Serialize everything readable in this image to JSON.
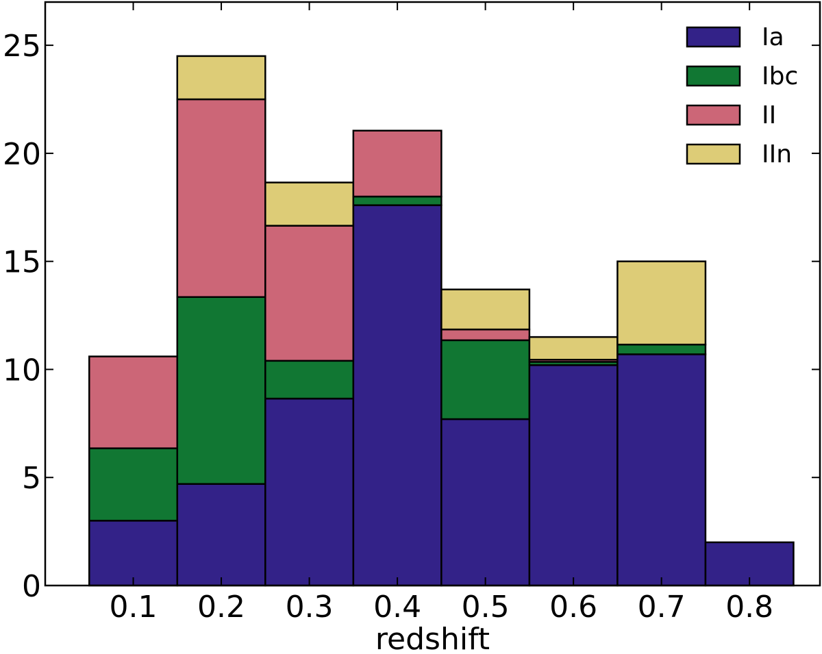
{
  "chart_data": {
    "type": "bar",
    "stacked": true,
    "title": "",
    "xlabel": "redshift",
    "ylabel": "",
    "categories": [
      "0.1",
      "0.2",
      "0.3",
      "0.4",
      "0.5",
      "0.6",
      "0.7",
      "0.8"
    ],
    "x": [
      0.1,
      0.2,
      0.3,
      0.4,
      0.5,
      0.6,
      0.7,
      0.8
    ],
    "bin_width": 0.1,
    "xlim": [
      0.0,
      0.88
    ],
    "ylim": [
      0,
      27
    ],
    "yticks": [
      0,
      5,
      10,
      15,
      20,
      25
    ],
    "grid": false,
    "legend_position": "top-right",
    "series": [
      {
        "name": "Ia",
        "color": "#332288",
        "values": [
          3.0,
          4.7,
          8.65,
          17.6,
          7.7,
          10.2,
          10.7,
          2.0
        ]
      },
      {
        "name": "Ibc",
        "color": "#117733",
        "values": [
          3.35,
          8.65,
          1.75,
          0.4,
          3.65,
          0.15,
          0.45,
          0.0
        ]
      },
      {
        "name": "II",
        "color": "#CC6677",
        "values": [
          4.25,
          9.15,
          6.25,
          3.05,
          0.5,
          0.1,
          0.0,
          0.0
        ]
      },
      {
        "name": "IIn",
        "color": "#DDCC77",
        "values": [
          0.0,
          2.0,
          2.0,
          0.0,
          1.85,
          1.05,
          3.85,
          0.0
        ]
      }
    ]
  }
}
